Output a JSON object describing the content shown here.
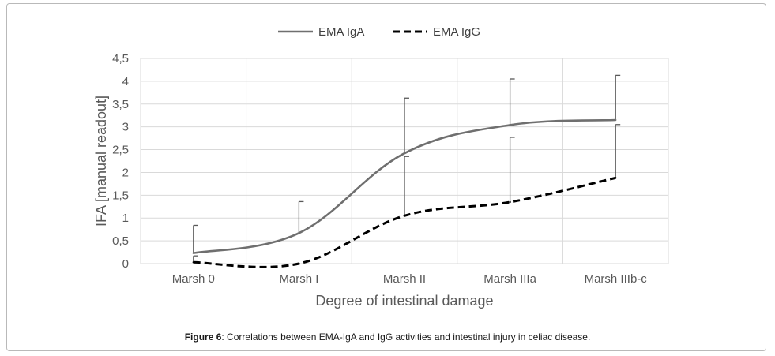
{
  "chart_data": {
    "type": "line",
    "categories": [
      "Marsh 0",
      "Marsh I",
      "Marsh II",
      "Marsh IIIa",
      "Marsh IIIb-c"
    ],
    "series": [
      {
        "name": "EMA IgA",
        "values": [
          0.23,
          0.67,
          2.42,
          3.04,
          3.15
        ],
        "error_upper": [
          0.84,
          1.36,
          3.63,
          4.05,
          4.13
        ],
        "color": "#6f6f6f",
        "style": "solid"
      },
      {
        "name": "EMA IgG",
        "values": [
          0.03,
          0.0,
          1.05,
          1.35,
          1.88
        ],
        "error_upper": [
          0.17,
          0.0,
          2.35,
          2.77,
          3.05
        ],
        "color": "#000000",
        "style": "dashed"
      }
    ],
    "ylim": [
      0,
      4.5
    ],
    "yticks": [
      "0",
      "0,5",
      "1",
      "1,5",
      "2",
      "2,5",
      "3",
      "3,5",
      "4",
      "4,5"
    ],
    "xlabel": "Degree of intestinal damage",
    "ylabel": "IFA [manual readout]",
    "grid": true,
    "legend": "top-center"
  },
  "caption": {
    "label": "Figure 6",
    "text": ": Correlations between EMA-IgA and IgG activities and intestinal injury in celiac disease."
  },
  "colors": {
    "grid": "#d9d9d9",
    "axis_text": "#595959"
  }
}
